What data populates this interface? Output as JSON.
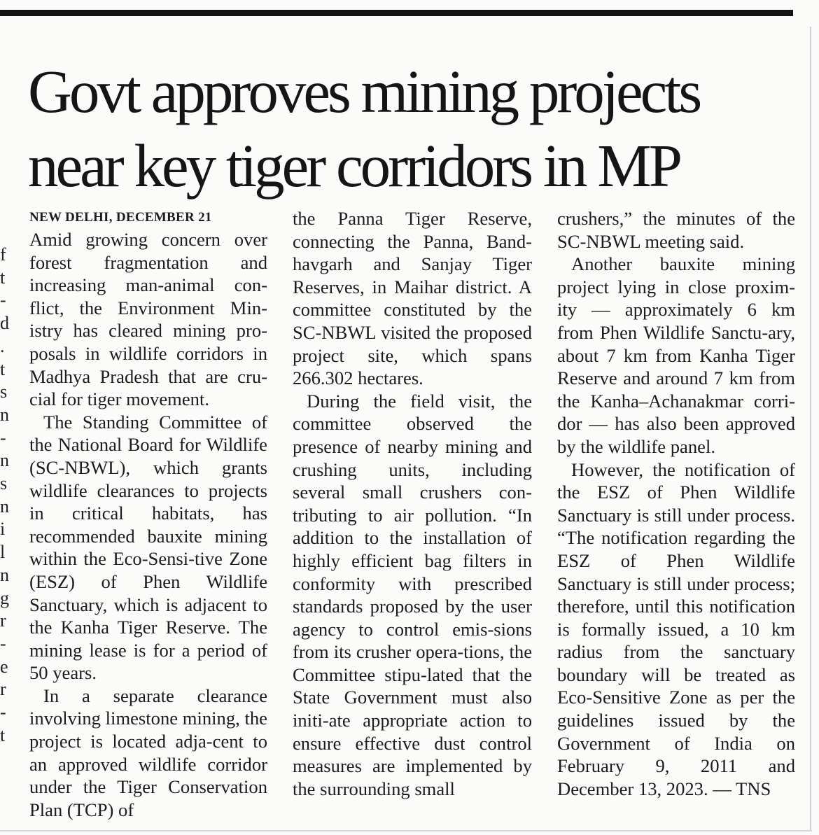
{
  "headline": {
    "line1": "Govt approves mining projects",
    "line2": "near key tiger corridors in MP"
  },
  "dateline": "NEW DELHI, DECEMBER 21",
  "left_edge_glyphs": [
    "f",
    "t",
    "-",
    "d",
    ".",
    "t",
    "s",
    "n",
    "-",
    "n",
    "s",
    "n",
    "i",
    "l",
    "n",
    "g",
    "r",
    "-",
    "e",
    "r",
    "-",
    "t"
  ],
  "article": {
    "p1": "Amid growing concern over forest fragmentation and increasing man-animal con-flict, the Environment Min-istry has cleared mining pro-posals in wildlife corridors in Madhya Pradesh that are cru-cial for tiger movement.",
    "p2": "The Standing Committee of the National Board for Wildlife (SC-NBWL), which grants wildlife clearances to projects in critical habitats, has recommended bauxite mining within the Eco-Sensi-tive Zone (ESZ) of Phen Wildlife Sanctuary, which is adjacent to the Kanha Tiger Reserve. The mining lease is for a period of 50 years.",
    "p3a": "In a separate clearance involving limestone mining, the project is located adja-cent to an approved wildlife corridor under the Tiger Conservation Plan (TCP) of",
    "p3b": "the Panna Tiger Reserve, connecting the Panna, Band-havgarh and Sanjay Tiger Reserves, in Maihar district. A committee constituted by the SC-NBWL visited the proposed project site, which spans 266.302 hectares.",
    "p4a": "During the field visit, the committee observed the presence of nearby mining and crushing units, including several small crushers con-tributing to air pollution. “In addition to the installation of highly efficient bag filters in conformity with prescribed standards proposed by the user agency to control emis-sions from its crusher opera-tions, the Committee stipu-lated that the State Government must also initi-ate appropriate action to ensure effective dust control measures are implemented by the surrounding small",
    "p4b": "crushers,” the minutes of the SC-NBWL meeting said.",
    "p5": "Another bauxite mining project lying in close proxim-ity — approximately 6 km from Phen Wildlife Sanctu-ary, about 7 km from Kanha Tiger Reserve and around 7 km from the Kanha–Achanakmar corri-dor — has also been approved by the wildlife panel.",
    "p6": "However, the notification of the ESZ of Phen Wildlife Sanctuary is still under process. “The notification regarding the ESZ of Phen Wildlife Sanctuary is still under process; therefore, until this notification is formally issued, a 10 km radius from the sanctuary boundary will be treated as Eco-Sensitive Zone as per the guidelines issued by the Government of India on February 9, 2011 and December 13, 2023. — TNS"
  }
}
